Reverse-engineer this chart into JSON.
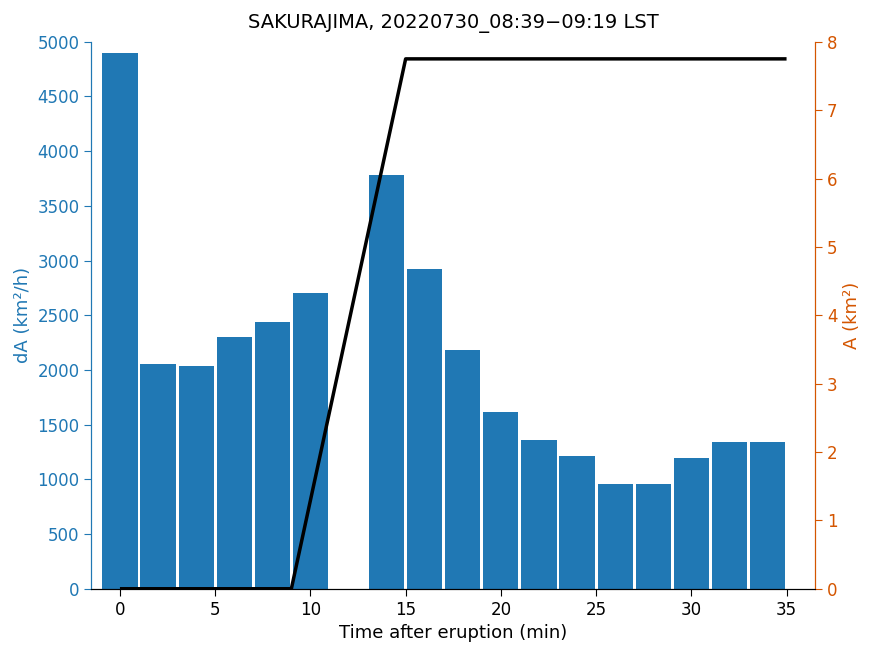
{
  "title": "SAKURAJIMA, 20220730_08:39−09:19 LST",
  "xlabel": "Time after eruption (min)",
  "ylabel_left": "dA (km²/h)",
  "ylabel_right": "A (km²)",
  "bar_positions": [
    0,
    2,
    4,
    6,
    8,
    10,
    14,
    16,
    18,
    20,
    22,
    24,
    26,
    28,
    30,
    32,
    34
  ],
  "bar_heights": [
    4900,
    2050,
    2040,
    2300,
    2440,
    2700,
    3780,
    2920,
    2180,
    1620,
    1360,
    1210,
    960,
    960,
    1195,
    1340,
    1340
  ],
  "bar_width": 1.85,
  "bar_color": "#2078b4",
  "line_x": [
    0,
    9.0,
    15.0,
    35
  ],
  "line_y": [
    0,
    0,
    7.75,
    7.75
  ],
  "line_color": "#000000",
  "line_width": 2.5,
  "ylim_left": [
    0,
    5000
  ],
  "ylim_right": [
    0,
    8
  ],
  "xlim": [
    -1.5,
    36.5
  ],
  "xticks": [
    0,
    5,
    10,
    15,
    20,
    25,
    30,
    35
  ],
  "yticks_left": [
    0,
    500,
    1000,
    1500,
    2000,
    2500,
    3000,
    3500,
    4000,
    4500,
    5000
  ],
  "yticks_right": [
    0,
    1,
    2,
    3,
    4,
    5,
    6,
    7,
    8
  ],
  "left_tick_color": "#2078b4",
  "right_tick_color": "#d45500",
  "title_fontsize": 14,
  "label_fontsize": 13,
  "tick_fontsize": 12
}
